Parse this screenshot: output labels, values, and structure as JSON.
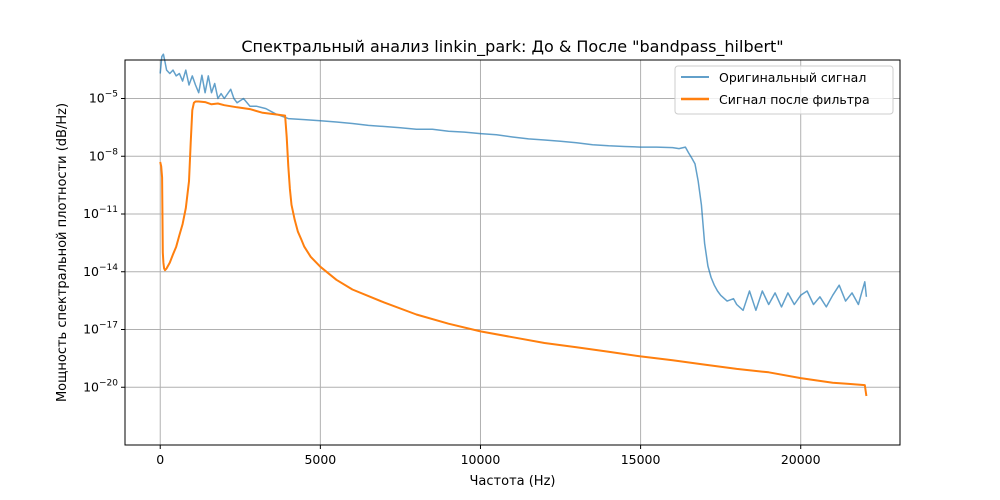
{
  "chart_data": {
    "type": "line",
    "title": "Спектральный анализ linkin_park: До & После \"bandpass_hilbert\"",
    "xlabel": "Частота (Hz)",
    "ylabel": "Мощность спектральной плотности (dB/Hz)",
    "xlim": [
      -1100,
      23100
    ],
    "ylim": [
      1e-23,
      0.001
    ],
    "yscale": "log",
    "grid": true,
    "legend_position": "top-right",
    "x_ticks": [
      0,
      5000,
      10000,
      15000,
      20000
    ],
    "x_tick_labels": [
      "0",
      "5000",
      "10000",
      "15000",
      "20000"
    ],
    "y_ticks": [
      1e-05,
      1e-08,
      1e-11,
      1e-14,
      1e-17,
      1e-20
    ],
    "y_tick_labels": [
      {
        "base": "10",
        "exp": "−5"
      },
      {
        "base": "10",
        "exp": "−8"
      },
      {
        "base": "10",
        "exp": "−11"
      },
      {
        "base": "10",
        "exp": "−14"
      },
      {
        "base": "10",
        "exp": "−17"
      },
      {
        "base": "10",
        "exp": "−20"
      }
    ],
    "series": [
      {
        "name": "Оригинальный сигнал",
        "color": "#1f77b4",
        "opacity": 0.7,
        "x": [
          0,
          50,
          100,
          150,
          200,
          300,
          400,
          500,
          600,
          700,
          800,
          900,
          1000,
          1100,
          1200,
          1300,
          1400,
          1500,
          1600,
          1700,
          1800,
          1900,
          2000,
          2200,
          2300,
          2400,
          2600,
          2800,
          3000,
          3300,
          3600,
          4000,
          4500,
          5000,
          5500,
          6000,
          6500,
          7000,
          7500,
          8000,
          8500,
          9000,
          9500,
          10000,
          10500,
          11000,
          11500,
          12000,
          12500,
          13000,
          13500,
          14000,
          14500,
          15000,
          15500,
          16000,
          16200,
          16400,
          16500,
          16600,
          16700,
          16800,
          16900,
          17000,
          17100,
          17200,
          17300,
          17400,
          17500,
          17700,
          17900,
          18000,
          18200,
          18400,
          18600,
          18800,
          19000,
          19200,
          19400,
          19600,
          19800,
          20000,
          20200,
          20400,
          20600,
          20800,
          21000,
          21200,
          21400,
          21600,
          21800,
          21900,
          22000,
          22050
        ],
        "y": [
          0.0002,
          0.0015,
          0.002,
          0.0008,
          0.0003,
          0.0002,
          0.0003,
          0.00015,
          0.0002,
          8e-05,
          0.0003,
          5e-05,
          0.00015,
          5e-05,
          2e-05,
          0.00016,
          2e-05,
          0.00015,
          2e-05,
          6e-05,
          1e-05,
          1.8e-05,
          1e-05,
          3e-05,
          1e-05,
          6e-06,
          1e-05,
          4e-06,
          4e-06,
          3e-06,
          1.6e-06,
          9e-07,
          8e-07,
          7e-07,
          6e-07,
          5e-07,
          4e-07,
          3.5e-07,
          3e-07,
          2.5e-07,
          2.5e-07,
          2e-07,
          1.8e-07,
          1.5e-07,
          1.3e-07,
          1e-07,
          8e-08,
          7e-08,
          6e-08,
          5e-08,
          4e-08,
          3.5e-08,
          3.2e-08,
          3e-08,
          3e-08,
          2.8e-08,
          2.5e-08,
          3e-08,
          1.5e-08,
          8e-09,
          4e-09,
          5e-10,
          3e-11,
          3e-13,
          2e-14,
          5e-15,
          2e-15,
          1e-15,
          6e-16,
          3e-16,
          4e-16,
          2e-16,
          1e-16,
          1e-15,
          1e-16,
          1e-15,
          2e-16,
          8e-16,
          1.5e-16,
          8e-16,
          2e-16,
          6e-16,
          1e-15,
          2e-16,
          5e-16,
          1.5e-16,
          6e-16,
          2e-15,
          3e-16,
          8e-16,
          2e-16,
          8e-16,
          3e-15,
          5e-16
        ]
      },
      {
        "name": "Сигнал после фильтра",
        "color": "#ff7f0e",
        "opacity": 1,
        "x": [
          0,
          30,
          60,
          80,
          100,
          120,
          150,
          200,
          300,
          400,
          500,
          600,
          700,
          800,
          850,
          900,
          950,
          1000,
          1050,
          1100,
          1200,
          1400,
          1600,
          1800,
          2000,
          2400,
          2800,
          3200,
          3600,
          3900,
          3950,
          4000,
          4050,
          4100,
          4200,
          4300,
          4400,
          4500,
          4700,
          5000,
          5500,
          6000,
          7000,
          8000,
          9000,
          10000,
          11000,
          12000,
          13000,
          14000,
          15000,
          16000,
          17000,
          18000,
          19000,
          20000,
          21000,
          21500,
          22000,
          22050
        ],
        "y": [
          5e-09,
          3e-09,
          8e-10,
          1e-13,
          3e-14,
          1.5e-14,
          1.2e-14,
          1.5e-14,
          3e-14,
          8e-14,
          2e-13,
          8e-13,
          3e-12,
          2e-11,
          1e-10,
          5e-10,
          5e-08,
          2.5e-06,
          6e-06,
          7e-06,
          7e-06,
          6.5e-06,
          5e-06,
          5.5e-06,
          4.5e-06,
          3.5e-06,
          2.8e-06,
          1.8e-06,
          1.5e-06,
          1.3e-06,
          1e-07,
          3e-09,
          2e-10,
          3e-11,
          5e-12,
          1.2e-12,
          5e-13,
          2e-13,
          6e-14,
          1.8e-14,
          3.8e-15,
          1.2e-15,
          2.5e-16,
          6e-17,
          2e-17,
          8e-18,
          4e-18,
          2e-18,
          1.2e-18,
          7e-19,
          4e-19,
          2.5e-19,
          1.5e-19,
          9e-20,
          6e-20,
          3e-20,
          1.7e-20,
          1.5e-20,
          1.3e-20,
          3.5e-21
        ]
      }
    ]
  }
}
